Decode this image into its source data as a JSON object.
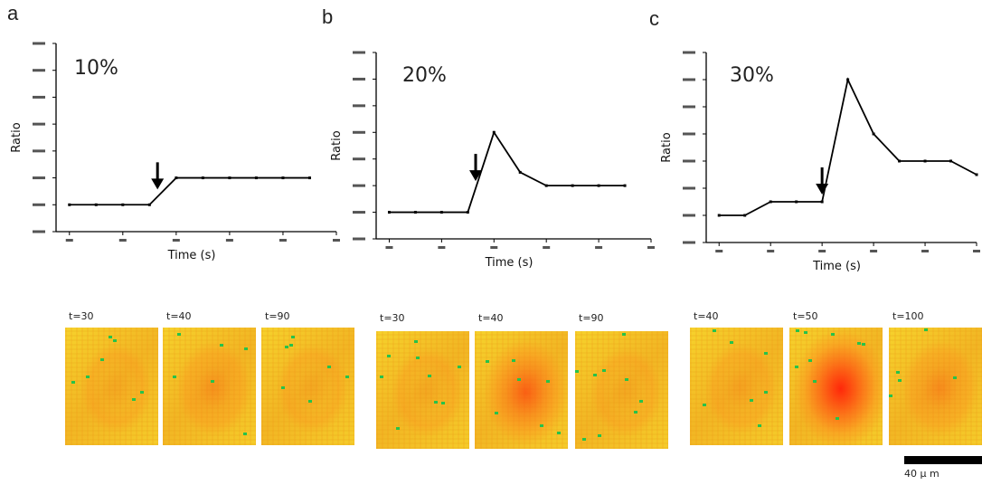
{
  "chart_data": [
    {
      "type": "line",
      "panel": "a",
      "percent_label": "10%",
      "xlabel": "Time (s)",
      "ylabel": "Ratio",
      "xlim": [
        -5,
        100
      ],
      "ylim": [
        0.8,
        1.5
      ],
      "x": [
        0,
        10,
        20,
        30,
        40,
        50,
        60,
        70,
        80,
        90
      ],
      "values": [
        0.9,
        0.9,
        0.9,
        0.9,
        1.0,
        1.0,
        1.0,
        1.0,
        1.0,
        1.0
      ],
      "stimulus_arrow_x": 33,
      "line_color": "#000000"
    },
    {
      "type": "line",
      "panel": "b",
      "percent_label": "20%",
      "xlabel": "Time (s)",
      "ylabel": "Ratio",
      "xlim": [
        -5,
        100
      ],
      "ylim": [
        0.8,
        1.5
      ],
      "x": [
        0,
        10,
        20,
        30,
        40,
        50,
        60,
        70,
        80,
        90
      ],
      "values": [
        0.9,
        0.9,
        0.9,
        0.9,
        1.2,
        1.05,
        1.0,
        1.0,
        1.0,
        1.0
      ],
      "stimulus_arrow_x": 33,
      "line_color": "#000000"
    },
    {
      "type": "line",
      "panel": "c",
      "percent_label": "30%",
      "xlabel": "Time (s)",
      "ylabel": "Ratio",
      "xlim": [
        -5,
        100
      ],
      "ylim": [
        0.8,
        1.5
      ],
      "x": [
        0,
        10,
        20,
        30,
        40,
        50,
        60,
        70,
        80,
        90,
        100
      ],
      "values": [
        0.9,
        0.9,
        0.95,
        0.95,
        0.95,
        1.4,
        1.2,
        1.1,
        1.1,
        1.1,
        1.05
      ],
      "stimulus_arrow_x": 40,
      "line_color": "#000000"
    }
  ],
  "image_series": [
    {
      "labels": [
        "t=30",
        "t=40",
        "t=90"
      ],
      "intensity": [
        0.1,
        0.25,
        0.1
      ]
    },
    {
      "labels": [
        "t=30",
        "t=40",
        "t=90"
      ],
      "intensity": [
        0.1,
        0.6,
        0.1
      ]
    },
    {
      "labels": [
        "t=40",
        "t=50",
        "t=100"
      ],
      "intensity": [
        0.15,
        1.0,
        0.3
      ]
    }
  ],
  "scale_label": "40 μ m",
  "colors": {
    "base": "#f2cc22",
    "hot": "#ff3a10",
    "speck": "#27c24a"
  }
}
